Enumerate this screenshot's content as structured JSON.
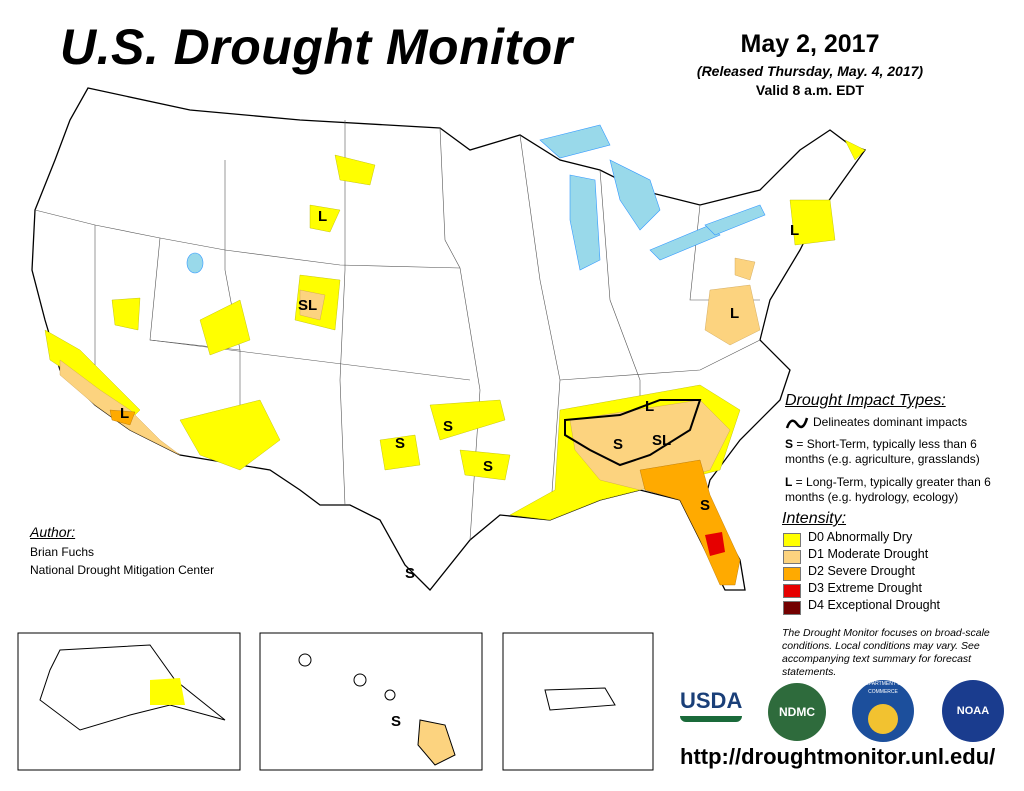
{
  "header": {
    "title": "U.S. Drought Monitor",
    "date": "May 2, 2017",
    "released": "(Released Thursday, May. 4, 2017)",
    "valid": "Valid 8 a.m. EDT"
  },
  "impact_types": {
    "heading": "Drought Impact Types:",
    "delineates": "Delineates dominant impacts",
    "s_key": "S",
    "s_text": " = Short-Term, typically less than 6 months (e.g. agriculture, grasslands)",
    "l_key": "L",
    "l_text": " = Long-Term, typically greater than 6 months (e.g. hydrology, ecology)"
  },
  "intensity": {
    "heading": "Intensity:",
    "levels": [
      {
        "label": "D0 Abnormally Dry",
        "color": "#ffff00"
      },
      {
        "label": "D1 Moderate Drought",
        "color": "#fcd37f"
      },
      {
        "label": "D2 Severe Drought",
        "color": "#ffaa00"
      },
      {
        "label": "D3 Extreme Drought",
        "color": "#e60000"
      },
      {
        "label": "D4 Exceptional Drought",
        "color": "#730000"
      }
    ]
  },
  "author": {
    "heading": "Author:",
    "name": "Brian Fuchs",
    "org": "National Drought Mitigation Center"
  },
  "note": "The Drought Monitor focuses on broad-scale conditions. Local conditions may vary. See accompanying text summary for forecast statements.",
  "url": "http://droughtmonitor.unl.edu/",
  "logos": {
    "usda": "USDA",
    "ndmc": "NDMC",
    "commerce": "DEPARTMENT OF COMMERCE",
    "noaa": "NOAA"
  },
  "map_labels": [
    "L",
    "SL",
    "L",
    "S",
    "S",
    "S",
    "L",
    "L",
    "SL",
    "L",
    "S",
    "S",
    "S",
    "S"
  ],
  "colors": {
    "water": "#99d9ea",
    "river": "#3399ff"
  }
}
